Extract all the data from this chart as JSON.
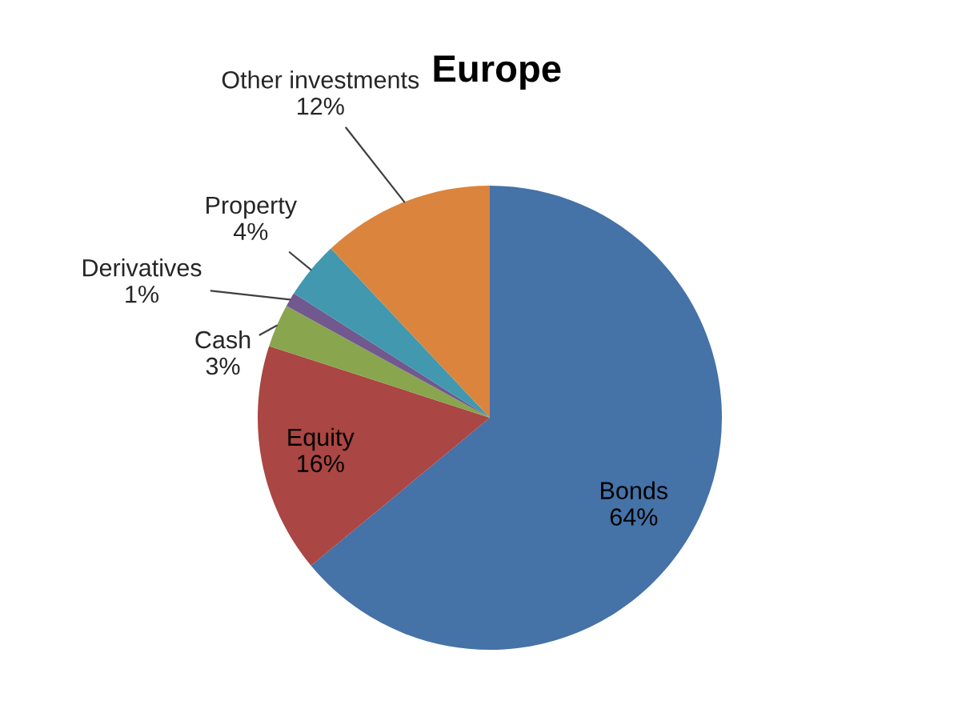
{
  "chart_data": {
    "type": "pie",
    "title": "Europe",
    "categories": [
      "Bonds",
      "Equity",
      "Cash",
      "Derivatives",
      "Property",
      "Other investments"
    ],
    "values": [
      64,
      16,
      3,
      1,
      4,
      12
    ],
    "value_labels": [
      "64%",
      "16%",
      "3%",
      "1%",
      "4%",
      "12%"
    ],
    "colors": [
      "#4572a7",
      "#aa4643",
      "#89a54e",
      "#71588f",
      "#4198af",
      "#db843d"
    ],
    "legend": false
  }
}
